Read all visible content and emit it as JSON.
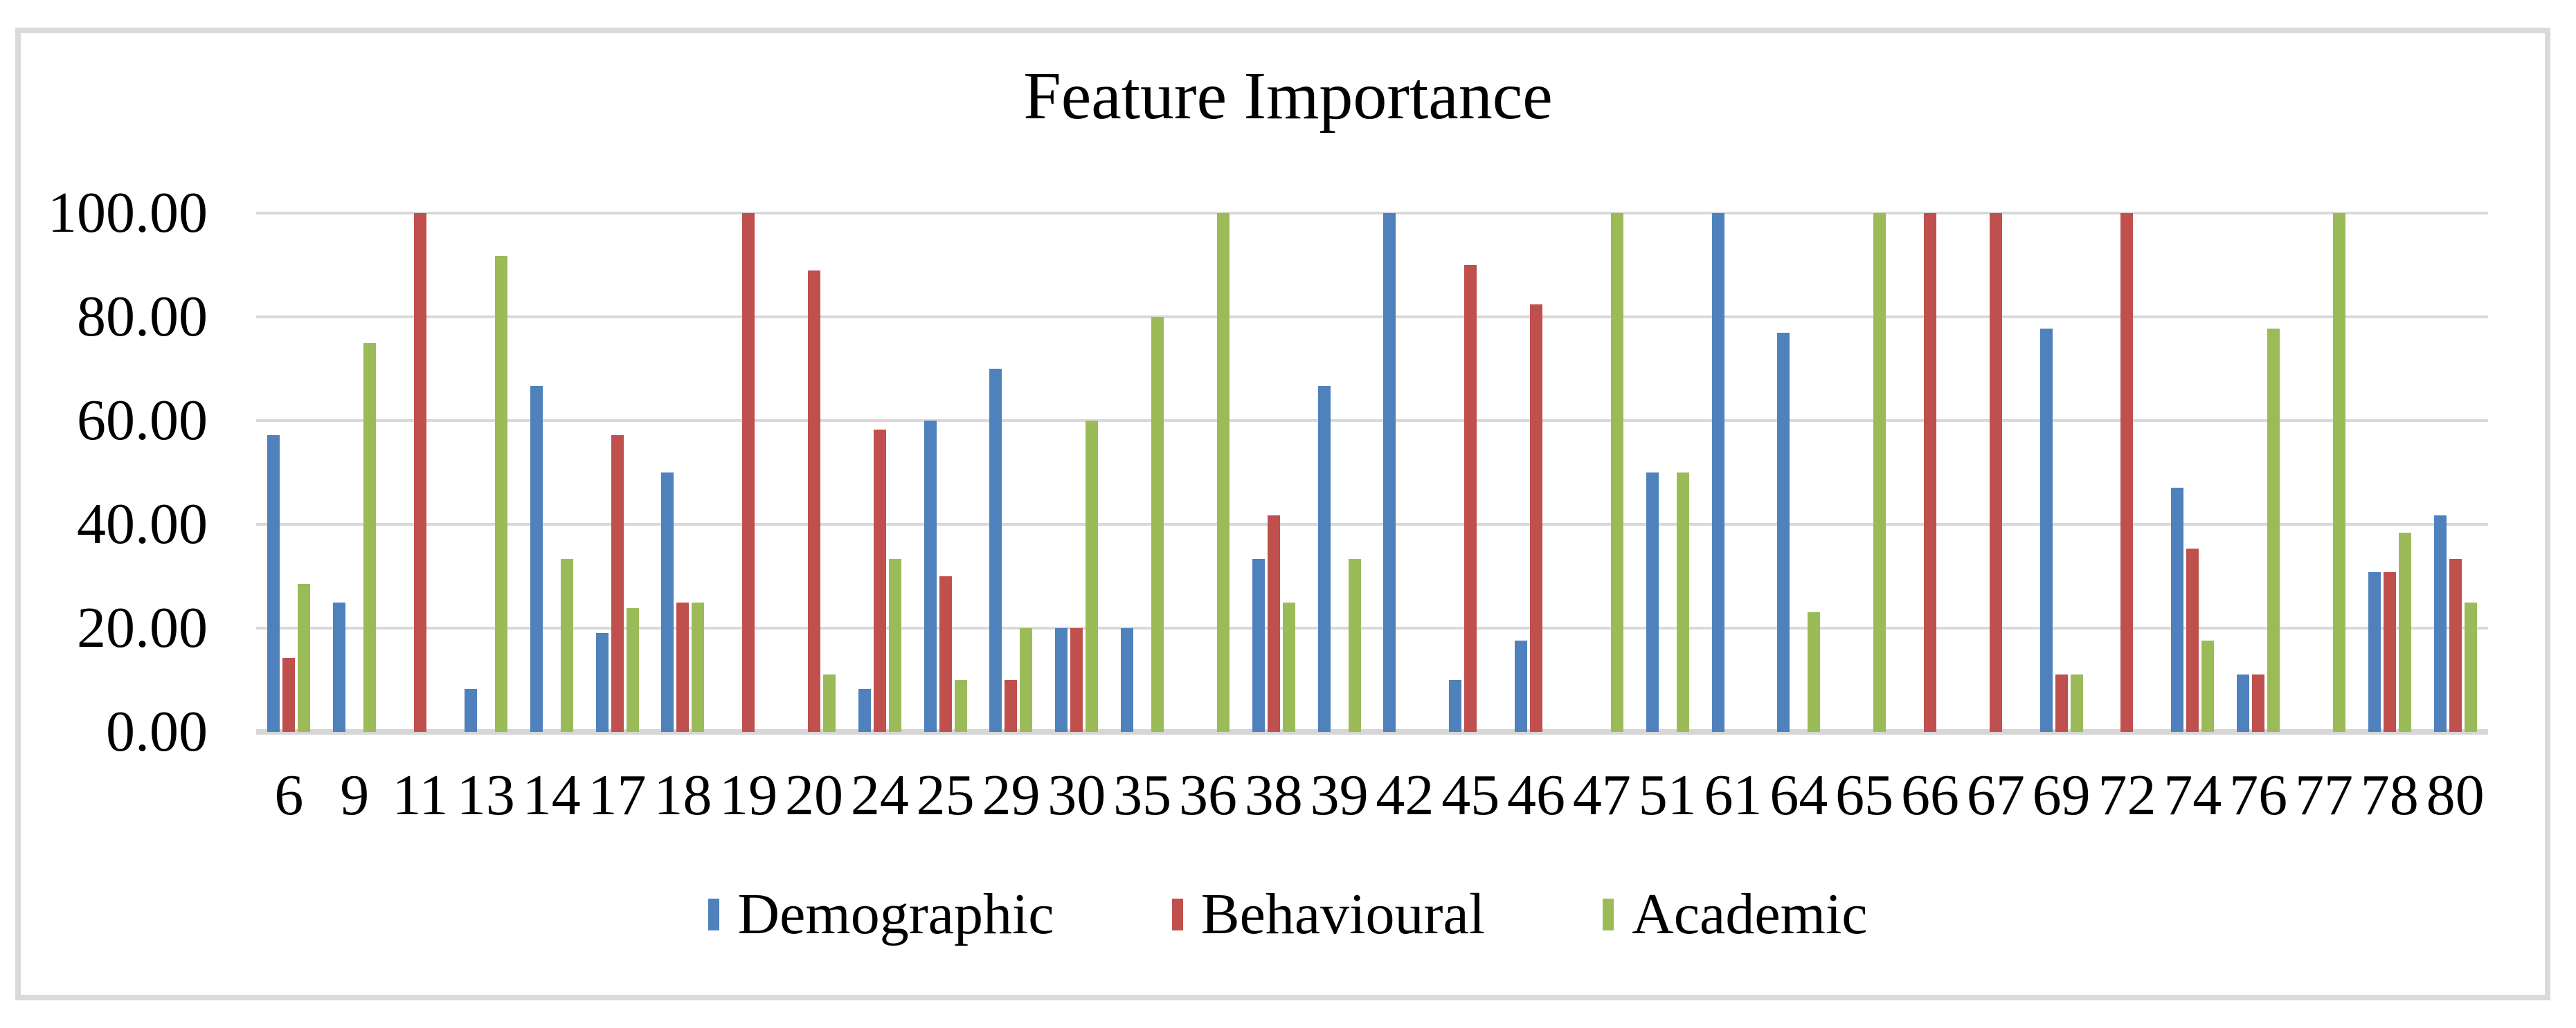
{
  "figure": {
    "background_color": "#FFFFFF",
    "border_color": "#DADADA"
  },
  "chart_data": {
    "type": "bar",
    "title": "Feature Importance",
    "categories": [
      "6",
      "9",
      "11",
      "13",
      "14",
      "17",
      "18",
      "19",
      "20",
      "24",
      "25",
      "29",
      "30",
      "35",
      "36",
      "38",
      "39",
      "42",
      "45",
      "46",
      "47",
      "51",
      "61",
      "64",
      "65",
      "66",
      "67",
      "69",
      "72",
      "74",
      "76",
      "77",
      "78",
      "80"
    ],
    "series": [
      {
        "name": "Demographic",
        "color": "#4F81BD",
        "values": [
          57.14,
          25.0,
          0,
          8.33,
          66.67,
          19.05,
          50.0,
          0,
          0,
          8.33,
          60.0,
          70.0,
          20.0,
          20.0,
          0,
          33.33,
          66.67,
          100.0,
          10.0,
          17.65,
          0,
          50.0,
          100.0,
          76.92,
          0,
          0,
          0,
          77.78,
          0,
          47.06,
          11.11,
          0,
          30.77,
          41.67
        ]
      },
      {
        "name": "Behavioural",
        "color": "#C0504D",
        "values": [
          14.29,
          0,
          100.0,
          0,
          0,
          57.14,
          25.0,
          100.0,
          88.89,
          58.33,
          30.0,
          10.0,
          20.0,
          0,
          0,
          41.67,
          0,
          0,
          90.0,
          82.35,
          0,
          0,
          0,
          0,
          0,
          100.0,
          100.0,
          11.11,
          100.0,
          35.29,
          11.11,
          0,
          30.77,
          33.33
        ]
      },
      {
        "name": "Academic",
        "color": "#9BBB59",
        "values": [
          28.57,
          75.0,
          0,
          91.67,
          33.33,
          23.81,
          25.0,
          0,
          11.11,
          33.33,
          10.0,
          20.0,
          60.0,
          80.0,
          100.0,
          25.0,
          33.33,
          0,
          0,
          0,
          100.0,
          50.0,
          0,
          23.08,
          100.0,
          0,
          0,
          11.11,
          0,
          17.65,
          77.78,
          100.0,
          38.46,
          25.0
        ]
      }
    ],
    "ylim": [
      0,
      100
    ],
    "ytick_step": 20,
    "yticks": [
      "100.00",
      "80.00",
      "60.00",
      "40.00",
      "20.00",
      "0.00"
    ],
    "grid": true,
    "gridline_color": "#D9D9D9",
    "legend_position": "bottom"
  }
}
